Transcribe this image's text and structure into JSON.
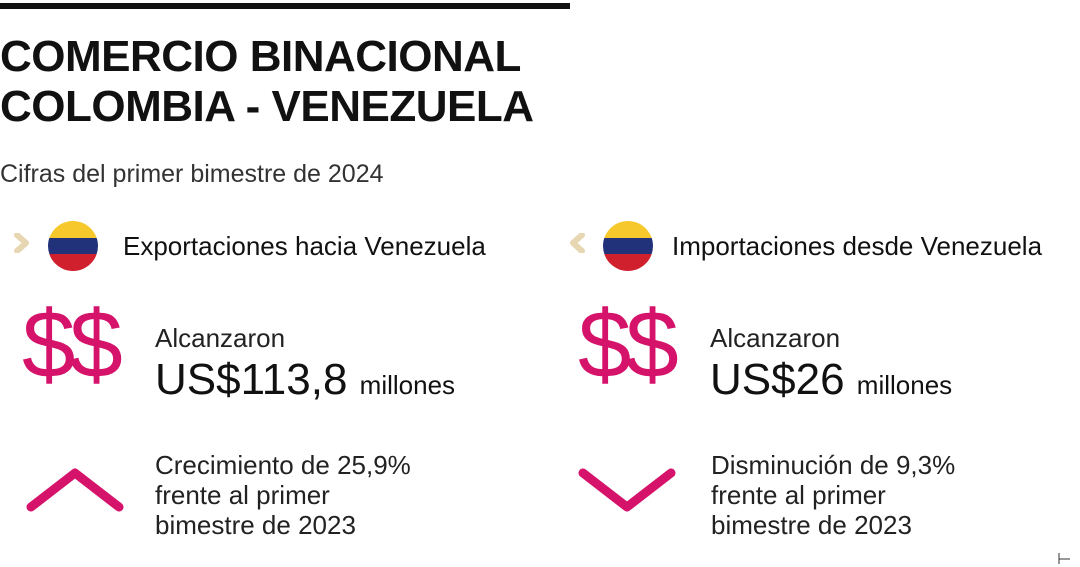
{
  "title_line1": "COMERCIO BINACIONAL",
  "title_line2": "COLOMBIA - VENEZUELA",
  "subtitle": "Cifras del primer bimestre de 2024",
  "colors": {
    "accent": "#d6136a",
    "chevron": "#e6d6b2",
    "flag_yellow": "#f7c82b",
    "flag_blue": "#22327a",
    "flag_red": "#d0202e"
  },
  "exports": {
    "heading": "Exportaciones hacia Venezuela",
    "icon": "chevron-right-icon",
    "label": "Alcanzaron",
    "amount": "US$113,8",
    "unit": "millones",
    "trend": "up",
    "desc": [
      "Crecimiento de 25,9%",
      "frente al primer",
      "bimestre de 2023"
    ]
  },
  "imports": {
    "heading": "Importaciones desde Venezuela",
    "icon": "chevron-left-icon",
    "label": "Alcanzaron",
    "amount": "US$26",
    "unit": "millones",
    "trend": "down",
    "desc": [
      "Disminución de 9,3%",
      "frente al primer",
      "bimestre de 2023"
    ]
  },
  "dollar_symbol": "$$"
}
